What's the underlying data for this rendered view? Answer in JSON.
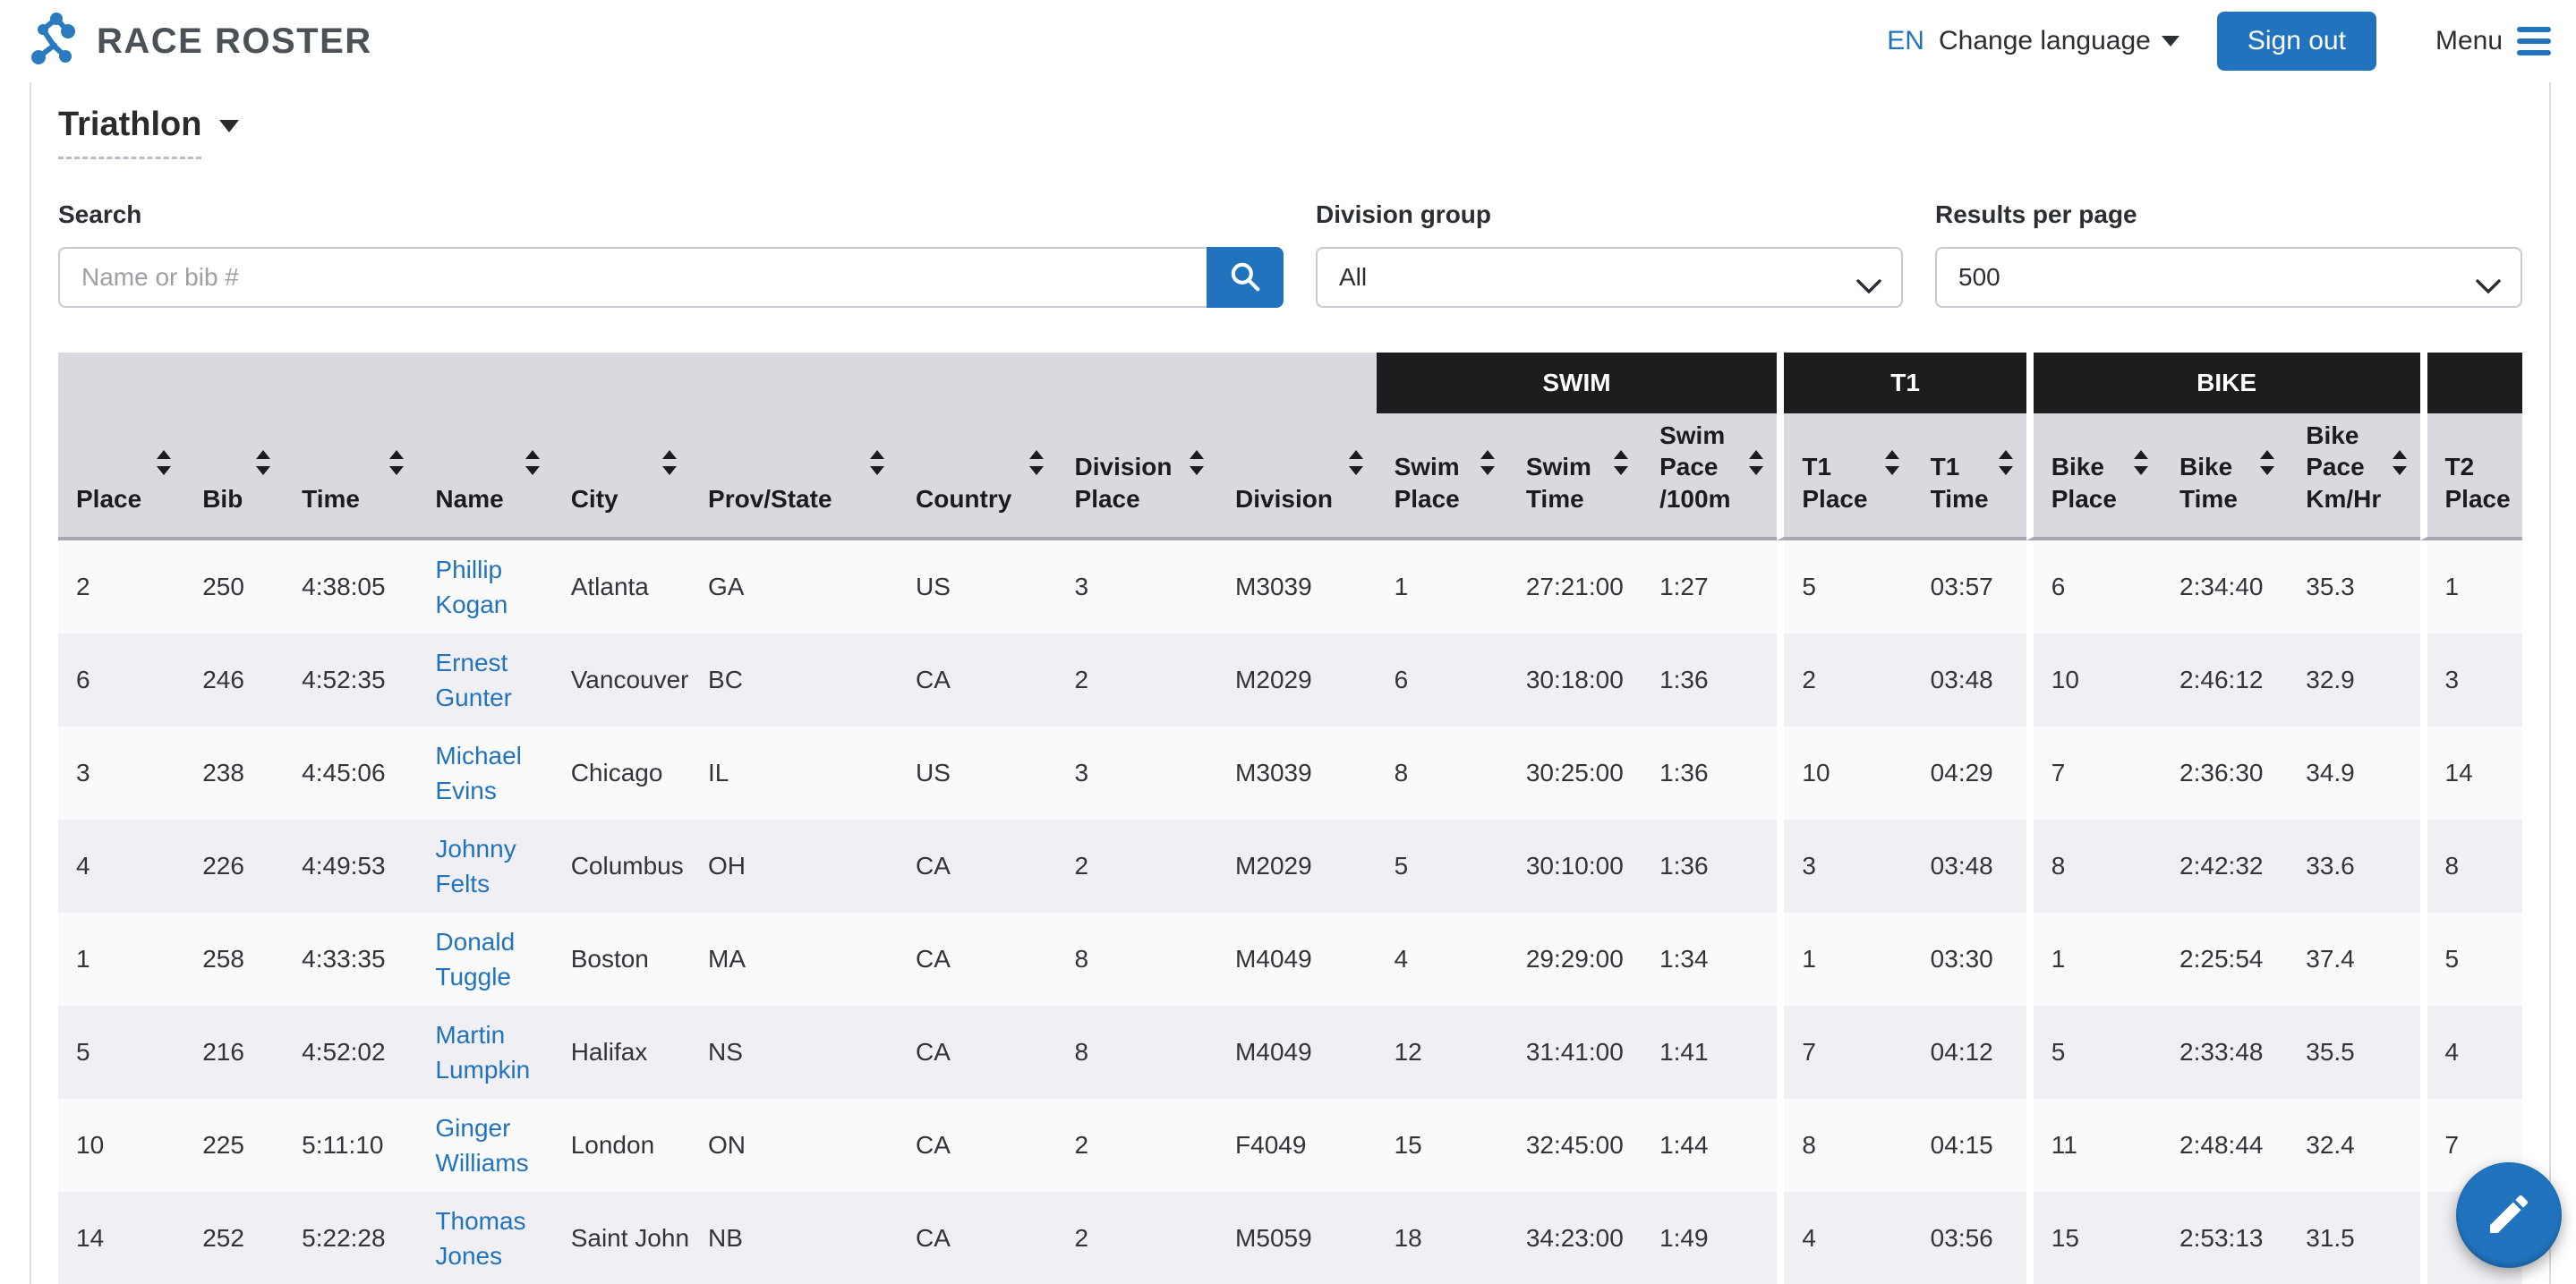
{
  "header": {
    "brand": "RACE ROSTER",
    "language_code": "EN",
    "change_language_label": "Change language",
    "sign_out_label": "Sign out",
    "menu_label": "Menu"
  },
  "event": {
    "title": "Triathlon"
  },
  "controls": {
    "search": {
      "label": "Search",
      "placeholder": "Name or bib #",
      "value": ""
    },
    "division_group": {
      "label": "Division group",
      "value": "All"
    },
    "results_per_page": {
      "label": "Results per page",
      "value": "500"
    }
  },
  "table": {
    "groups": [
      {
        "label": "",
        "span": 9
      },
      {
        "label": "SWIM",
        "span": 3
      },
      {
        "label": "T1",
        "span": 2
      },
      {
        "label": "BIKE",
        "span": 3
      },
      {
        "label": "",
        "span": 1
      }
    ],
    "columns": [
      "Place",
      "Bib",
      "Time",
      "Name",
      "City",
      "Prov/State",
      "Country",
      "Division Place",
      "Division",
      "Swim Place",
      "Swim Time",
      "Swim Pace /100m",
      "T1 Place",
      "T1 Time",
      "Bike Place",
      "Bike Time",
      "Bike Pace Km/Hr",
      "T2 Place"
    ],
    "rows": [
      [
        "2",
        "250",
        "4:38:05",
        "Phillip Kogan",
        "Atlanta",
        "GA",
        "US",
        "3",
        "M3039",
        "1",
        "27:21:00",
        "1:27",
        "5",
        "03:57",
        "6",
        "2:34:40",
        "35.3",
        "1"
      ],
      [
        "6",
        "246",
        "4:52:35",
        "Ernest Gunter",
        "Vancouver",
        "BC",
        "CA",
        "2",
        "M2029",
        "6",
        "30:18:00",
        "1:36",
        "2",
        "03:48",
        "10",
        "2:46:12",
        "32.9",
        "3"
      ],
      [
        "3",
        "238",
        "4:45:06",
        "Michael Evins",
        "Chicago",
        "IL",
        "US",
        "3",
        "M3039",
        "8",
        "30:25:00",
        "1:36",
        "10",
        "04:29",
        "7",
        "2:36:30",
        "34.9",
        "14"
      ],
      [
        "4",
        "226",
        "4:49:53",
        "Johnny Felts",
        "Columbus",
        "OH",
        "CA",
        "2",
        "M2029",
        "5",
        "30:10:00",
        "1:36",
        "3",
        "03:48",
        "8",
        "2:42:32",
        "33.6",
        "8"
      ],
      [
        "1",
        "258",
        "4:33:35",
        "Donald Tuggle",
        "Boston",
        "MA",
        "CA",
        "8",
        "M4049",
        "4",
        "29:29:00",
        "1:34",
        "1",
        "03:30",
        "1",
        "2:25:54",
        "37.4",
        "5"
      ],
      [
        "5",
        "216",
        "4:52:02",
        "Martin Lumpkin",
        "Halifax",
        "NS",
        "CA",
        "8",
        "M4049",
        "12",
        "31:41:00",
        "1:41",
        "7",
        "04:12",
        "5",
        "2:33:48",
        "35.5",
        "4"
      ],
      [
        "10",
        "225",
        "5:11:10",
        "Ginger Williams",
        "London",
        "ON",
        "CA",
        "2",
        "F4049",
        "15",
        "32:45:00",
        "1:44",
        "8",
        "04:15",
        "11",
        "2:48:44",
        "32.4",
        "7"
      ],
      [
        "14",
        "252",
        "5:22:28",
        "Thomas Jones",
        "Saint John",
        "NB",
        "CA",
        "2",
        "M5059",
        "18",
        "34:23:00",
        "1:49",
        "4",
        "03:56",
        "15",
        "2:53:13",
        "31.5",
        ""
      ]
    ]
  },
  "colors": {
    "accent_blue": "#2173bd",
    "link_blue": "#2173bd",
    "group_header_bg": "#1d1d20",
    "table_header_bg": "#d9d9df",
    "row_odd_bg": "#fafafa",
    "row_even_bg": "#f0f0f4",
    "logo_blue": "#2b7abf",
    "brand_text": "#4c5156"
  },
  "fab": {
    "icon": "pencil-edit"
  }
}
